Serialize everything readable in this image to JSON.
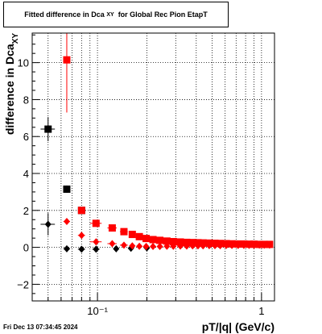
{
  "chart_data": {
    "type": "scatter",
    "title_main": "Fitted difference in Dca",
    "title_sub": "XY",
    "title_rest": "for Global Rec Pion EtapT",
    "xlabel": "pT/|q| (GeV/c)",
    "ylabel_main": "difference in Dca",
    "ylabel_sub": "XY",
    "x_scale": "log",
    "xlim": [
      0.04,
      1.2
    ],
    "ylim": [
      -2.9,
      11.6
    ],
    "grid": true,
    "y_ticks": [
      -2,
      0,
      2,
      4,
      6,
      8,
      10
    ],
    "y_tick_labels": [
      "−2",
      "0",
      "2",
      "4",
      "6",
      "8",
      "10"
    ],
    "x_major_ticks": [
      0.1,
      1
    ],
    "x_tick_labels": [
      "10⁻¹",
      "1"
    ],
    "series": [
      {
        "color": "#000000",
        "marker": "square",
        "points": [
          {
            "x": 0.05,
            "y": 6.4,
            "xerr": 0.005,
            "yerr": 0.65
          },
          {
            "x": 0.065,
            "y": 3.15,
            "xerr": 0.003,
            "yerr": 0.2
          },
          {
            "x": 0.08,
            "y": 2.0,
            "xerr": 0.004,
            "yerr": 0.12
          }
        ]
      },
      {
        "color": "#000000",
        "marker": "diamond",
        "points": [
          {
            "x": 0.05,
            "y": 1.25,
            "xerr": 0.005,
            "yerr": 0.6
          },
          {
            "x": 0.065,
            "y": -0.08,
            "xerr": 0.003,
            "yerr": 0.1
          },
          {
            "x": 0.08,
            "y": -0.1,
            "xerr": 0.004,
            "yerr": 0.08
          },
          {
            "x": 0.098,
            "y": -0.1,
            "xerr": 0.005,
            "yerr": 0.06
          },
          {
            "x": 0.13,
            "y": -0.08,
            "xerr": 0.005,
            "yerr": 0.05
          },
          {
            "x": 0.16,
            "y": -0.05,
            "xerr": 0.005,
            "yerr": 0.05
          },
          {
            "x": 0.2,
            "y": -0.03,
            "xerr": 0.005,
            "yerr": 0.04
          }
        ]
      },
      {
        "color": "#ff0000",
        "marker": "square",
        "points": [
          {
            "x": 0.065,
            "y": 10.15,
            "xerr": 0.003,
            "yerr": 2.85
          },
          {
            "x": 0.08,
            "y": 2.0,
            "xerr": 0.004,
            "yerr": 0.12
          },
          {
            "x": 0.098,
            "y": 1.3,
            "xerr": 0.008,
            "yerr": 0.1
          },
          {
            "x": 0.123,
            "y": 1.05,
            "xerr": 0.008,
            "yerr": 0.08
          },
          {
            "x": 0.145,
            "y": 0.85,
            "xerr": 0.008,
            "yerr": 0.07
          },
          {
            "x": 0.163,
            "y": 0.7,
            "xerr": 0.007,
            "yerr": 0.06
          },
          {
            "x": 0.18,
            "y": 0.58,
            "xerr": 0.007,
            "yerr": 0.05
          },
          {
            "x": 0.198,
            "y": 0.48,
            "xerr": 0.007,
            "yerr": 0.05
          },
          {
            "x": 0.218,
            "y": 0.42,
            "xerr": 0.007,
            "yerr": 0.04
          },
          {
            "x": 0.24,
            "y": 0.38,
            "xerr": 0.008,
            "yerr": 0.04
          },
          {
            "x": 0.265,
            "y": 0.34,
            "xerr": 0.008,
            "yerr": 0.04
          },
          {
            "x": 0.29,
            "y": 0.31,
            "xerr": 0.009,
            "yerr": 0.03
          },
          {
            "x": 0.32,
            "y": 0.29,
            "xerr": 0.01,
            "yerr": 0.03
          },
          {
            "x": 0.35,
            "y": 0.27,
            "xerr": 0.01,
            "yerr": 0.03
          },
          {
            "x": 0.38,
            "y": 0.26,
            "xerr": 0.01,
            "yerr": 0.03
          },
          {
            "x": 0.41,
            "y": 0.25,
            "xerr": 0.01,
            "yerr": 0.03
          },
          {
            "x": 0.44,
            "y": 0.24,
            "xerr": 0.01,
            "yerr": 0.03
          },
          {
            "x": 0.48,
            "y": 0.23,
            "xerr": 0.01,
            "yerr": 0.03
          },
          {
            "x": 0.52,
            "y": 0.22,
            "xerr": 0.01,
            "yerr": 0.03
          },
          {
            "x": 0.56,
            "y": 0.21,
            "xerr": 0.01,
            "yerr": 0.03
          },
          {
            "x": 0.61,
            "y": 0.2,
            "xerr": 0.015,
            "yerr": 0.03
          },
          {
            "x": 0.66,
            "y": 0.19,
            "xerr": 0.015,
            "yerr": 0.03
          },
          {
            "x": 0.72,
            "y": 0.18,
            "xerr": 0.015,
            "yerr": 0.03
          },
          {
            "x": 0.78,
            "y": 0.18,
            "xerr": 0.015,
            "yerr": 0.03
          },
          {
            "x": 0.84,
            "y": 0.17,
            "xerr": 0.015,
            "yerr": 0.03
          },
          {
            "x": 0.9,
            "y": 0.17,
            "xerr": 0.02,
            "yerr": 0.03
          },
          {
            "x": 0.97,
            "y": 0.16,
            "xerr": 0.02,
            "yerr": 0.03
          },
          {
            "x": 1.04,
            "y": 0.16,
            "xerr": 0.02,
            "yerr": 0.03
          },
          {
            "x": 1.12,
            "y": 0.16,
            "xerr": 0.02,
            "yerr": 0.03
          }
        ]
      },
      {
        "color": "#ff0000",
        "marker": "diamond",
        "points": [
          {
            "x": 0.065,
            "y": 1.4,
            "xerr": 0.003,
            "yerr": 0.12
          },
          {
            "x": 0.08,
            "y": 0.65,
            "xerr": 0.004,
            "yerr": 0.08
          },
          {
            "x": 0.098,
            "y": 0.3,
            "xerr": 0.008,
            "yerr": 0.06
          },
          {
            "x": 0.123,
            "y": 0.2,
            "xerr": 0.008,
            "yerr": 0.05
          },
          {
            "x": 0.145,
            "y": 0.12,
            "xerr": 0.008,
            "yerr": 0.04
          },
          {
            "x": 0.163,
            "y": 0.08,
            "xerr": 0.007,
            "yerr": 0.04
          },
          {
            "x": 0.18,
            "y": 0.06,
            "xerr": 0.007,
            "yerr": 0.03
          },
          {
            "x": 0.198,
            "y": 0.05,
            "xerr": 0.007,
            "yerr": 0.03
          },
          {
            "x": 0.218,
            "y": 0.05,
            "xerr": 0.007,
            "yerr": 0.03
          },
          {
            "x": 0.24,
            "y": 0.05,
            "xerr": 0.008,
            "yerr": 0.03
          },
          {
            "x": 0.265,
            "y": 0.06,
            "xerr": 0.008,
            "yerr": 0.03
          },
          {
            "x": 0.29,
            "y": 0.06,
            "xerr": 0.009,
            "yerr": 0.03
          },
          {
            "x": 0.32,
            "y": 0.07,
            "xerr": 0.01,
            "yerr": 0.03
          },
          {
            "x": 0.35,
            "y": 0.07,
            "xerr": 0.01,
            "yerr": 0.03
          },
          {
            "x": 0.38,
            "y": 0.08,
            "xerr": 0.01,
            "yerr": 0.03
          },
          {
            "x": 0.41,
            "y": 0.08,
            "xerr": 0.01,
            "yerr": 0.03
          },
          {
            "x": 0.44,
            "y": 0.08,
            "xerr": 0.01,
            "yerr": 0.03
          },
          {
            "x": 0.48,
            "y": 0.09,
            "xerr": 0.01,
            "yerr": 0.03
          },
          {
            "x": 0.52,
            "y": 0.09,
            "xerr": 0.01,
            "yerr": 0.03
          },
          {
            "x": 0.56,
            "y": 0.09,
            "xerr": 0.01,
            "yerr": 0.03
          },
          {
            "x": 0.61,
            "y": 0.1,
            "xerr": 0.015,
            "yerr": 0.03
          },
          {
            "x": 0.66,
            "y": 0.1,
            "xerr": 0.015,
            "yerr": 0.03
          },
          {
            "x": 0.72,
            "y": 0.1,
            "xerr": 0.015,
            "yerr": 0.03
          },
          {
            "x": 0.78,
            "y": 0.11,
            "xerr": 0.015,
            "yerr": 0.03
          },
          {
            "x": 0.84,
            "y": 0.11,
            "xerr": 0.015,
            "yerr": 0.03
          },
          {
            "x": 0.9,
            "y": 0.11,
            "xerr": 0.02,
            "yerr": 0.03
          },
          {
            "x": 0.97,
            "y": 0.12,
            "xerr": 0.02,
            "yerr": 0.03
          },
          {
            "x": 1.04,
            "y": 0.12,
            "xerr": 0.02,
            "yerr": 0.03
          },
          {
            "x": 1.12,
            "y": 0.12,
            "xerr": 0.02,
            "yerr": 0.03
          }
        ]
      }
    ]
  },
  "footer": {
    "timestamp": "Fri Dec 13 07:34:45 2024"
  }
}
